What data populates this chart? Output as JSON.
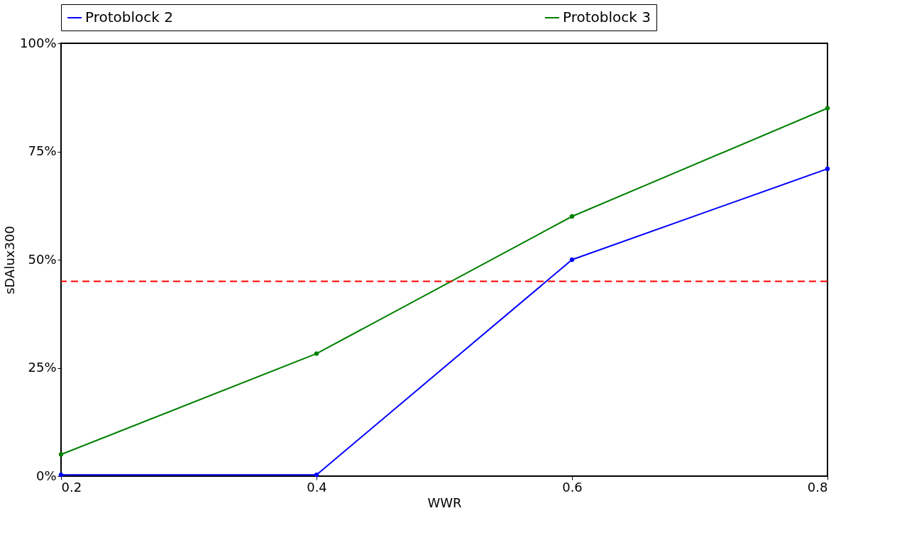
{
  "chart_data": {
    "type": "line",
    "xlabel": "WWR",
    "ylabel": "sDAlux300",
    "x": [
      0.2,
      0.4,
      0.6,
      0.8
    ],
    "series": [
      {
        "name": "Protoblock 2",
        "color": "#0000ff",
        "values": [
          0.3,
          0.3,
          50,
          71
        ]
      },
      {
        "name": "Protoblock 3",
        "color": "#008000",
        "values": [
          5,
          28.3,
          60,
          85
        ]
      }
    ],
    "xlim": [
      0.2,
      0.8
    ],
    "xticks": [
      0.2,
      0.4,
      0.6,
      0.8
    ],
    "ylim": [
      0,
      100
    ],
    "yticks": [
      {
        "value": 0,
        "label": "0%"
      },
      {
        "value": 25,
        "label": "25%"
      },
      {
        "value": 50,
        "label": "50%"
      },
      {
        "value": 75,
        "label": "75%"
      },
      {
        "value": 100,
        "label": "100%"
      }
    ],
    "ref_lines": [
      {
        "axis": "y",
        "value": 45,
        "label": null,
        "color": "#ff0000",
        "line_style": "dashed"
      }
    ],
    "legend": "top",
    "grid": false,
    "marker": "circle",
    "line_style": "solid"
  }
}
